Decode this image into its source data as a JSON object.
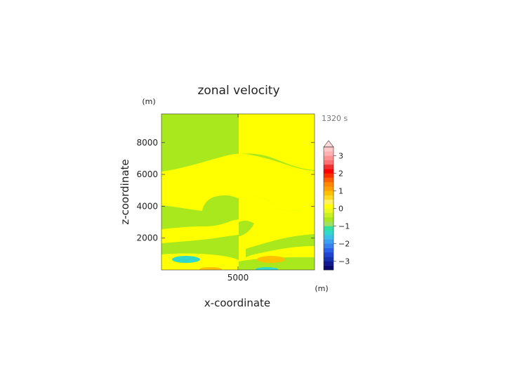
{
  "chart_data": {
    "type": "contour",
    "title": "zonal velocity",
    "xlabel": "x-coordinate",
    "ylabel": "z-coordinate",
    "x_unit": "(m)",
    "y_unit": "(m)",
    "time_label": "1320 s",
    "xlim": [
      0,
      10000
    ],
    "ylim": [
      0,
      9800
    ],
    "x_ticks": [
      5000
    ],
    "y_ticks": [
      2000,
      4000,
      6000,
      8000
    ],
    "colorbar": {
      "levels": [
        -3.5,
        -3.25,
        -3,
        -2.75,
        -2.5,
        -2.25,
        -2,
        -1.75,
        -1.5,
        -1.25,
        -1,
        -0.75,
        -0.5,
        -0.25,
        0,
        0.25,
        0.5,
        0.75,
        1,
        1.25,
        1.5,
        1.75,
        2,
        2.25,
        2.5,
        2.75,
        3,
        3.25,
        3.5
      ],
      "tick_labels": [
        "3",
        "2",
        "1",
        "0",
        "-1",
        "-2",
        "-3"
      ],
      "tick_values": [
        3,
        2,
        1,
        0,
        -1,
        -2,
        -3
      ],
      "extend": "max",
      "colors": [
        "#0a0a6e",
        "#0f1a90",
        "#1530b0",
        "#1f45d0",
        "#2a60e8",
        "#3a80f0",
        "#3aa0f0",
        "#3ac0e8",
        "#30d8c8",
        "#30e0a0",
        "#a0e060",
        "#a8e81c",
        "#c8f020",
        "#e8f820",
        "#ffff00",
        "#fff060",
        "#ffd820",
        "#ffc000",
        "#ffa000",
        "#ff8800",
        "#ff6000",
        "#ff3000",
        "#ff0000",
        "#f03030",
        "#ff7070",
        "#ff9090",
        "#ffb0b0",
        "#ffc8c8"
      ]
    },
    "colors_used": {
      "zero_pos": "#ffff00",
      "zero_neg": "#a8e81c",
      "neg_light": "#30d8c8",
      "pos_light": "#ffa000"
    }
  }
}
